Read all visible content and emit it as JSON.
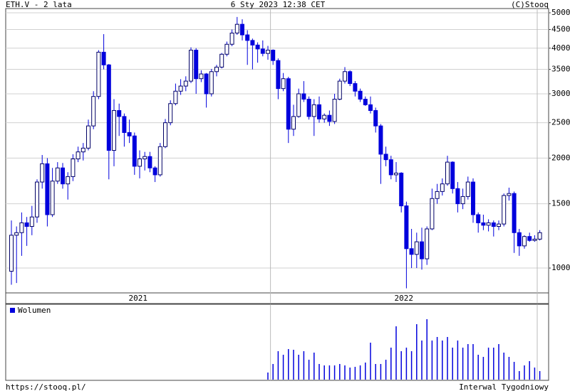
{
  "chart_data": {
    "type": "candlestick",
    "title": "ETH.V - 2 lata",
    "date": "6 Sty 2023 12:38 CET",
    "source": "(C)Stooq",
    "url": "https://stooq.pl/",
    "interval": "Interwal Tygodniowy",
    "x_labels": [
      "2021",
      "2022"
    ],
    "log_scale": true,
    "grid": true,
    "up_color": "#ffffff",
    "down_color": "#0000dd",
    "ylim": [
      855,
      5136
    ],
    "yticks": [
      1000,
      1500,
      2000,
      2500,
      3000,
      3500,
      4000,
      4500,
      5000
    ],
    "open": [
      980,
      1230,
      1250,
      1330,
      1300,
      1380,
      1720,
      1930,
      1400,
      1730,
      1880,
      1700,
      1780,
      1990,
      2080,
      2130,
      2450,
      2950,
      3900,
      3600,
      2100,
      2700,
      2600,
      2350,
      2300,
      1900,
      1990,
      2020,
      1880,
      1800,
      2150,
      2500,
      2820,
      3050,
      3150,
      3250,
      3950,
      3300,
      3400,
      3000,
      3450,
      3550,
      3850,
      4100,
      4400,
      4650,
      4350,
      4200,
      4080,
      3980,
      3870,
      3950,
      3700,
      3100,
      3300,
      2400,
      2600,
      3000,
      2900,
      2600,
      2800,
      2560,
      2620,
      2520,
      2900,
      3250,
      3450,
      3200,
      3050,
      2900,
      2800,
      2700,
      2450,
      2050,
      1980,
      1800,
      1820,
      1480,
      1130,
      1090,
      1180,
      1060,
      1280,
      1550,
      1620,
      1700,
      1950,
      1650,
      1500,
      1570,
      1720,
      1400,
      1330,
      1310,
      1330,
      1300,
      1320,
      1580,
      1600,
      1250,
      1150,
      1220,
      1190,
      1200
    ],
    "high": [
      1350,
      1300,
      1420,
      1380,
      1480,
      1750,
      2040,
      2000,
      1880,
      1950,
      1940,
      1830,
      2050,
      2150,
      2200,
      2550,
      3050,
      3950,
      4370,
      3620,
      2900,
      2820,
      2650,
      2550,
      2350,
      2100,
      2080,
      2080,
      1900,
      2200,
      2560,
      2880,
      3200,
      3290,
      3350,
      4020,
      4000,
      3480,
      3420,
      3510,
      3600,
      3880,
      4170,
      4500,
      4870,
      4800,
      4480,
      4250,
      4150,
      4200,
      4060,
      3970,
      3750,
      3420,
      3340,
      2800,
      3100,
      3250,
      2950,
      2900,
      2950,
      2650,
      2700,
      3000,
      3300,
      3550,
      3480,
      3250,
      3100,
      2950,
      2950,
      2750,
      2480,
      2150,
      2030,
      1950,
      1830,
      1520,
      1280,
      1250,
      1290,
      1300,
      1650,
      1700,
      1760,
      2030,
      1960,
      1720,
      1650,
      1780,
      1760,
      1420,
      1400,
      1360,
      1350,
      1350,
      1600,
      1660,
      1620,
      1280,
      1230,
      1250,
      1230,
      1270
    ],
    "low": [
      900,
      910,
      1080,
      1150,
      1230,
      1330,
      1650,
      1300,
      1380,
      1700,
      1650,
      1540,
      1730,
      1950,
      1970,
      2100,
      2400,
      2900,
      3500,
      1750,
      1900,
      2300,
      2150,
      2200,
      1800,
      1760,
      1850,
      1830,
      1720,
      1780,
      2130,
      2460,
      2790,
      2980,
      3050,
      3210,
      3000,
      3230,
      2750,
      2950,
      3350,
      3520,
      3800,
      4050,
      4350,
      4200,
      3600,
      3500,
      3650,
      3800,
      3720,
      3600,
      2900,
      3050,
      2200,
      2300,
      2580,
      2850,
      2550,
      2300,
      2500,
      2500,
      2450,
      2480,
      2880,
      3200,
      3150,
      2950,
      2850,
      2780,
      2650,
      2350,
      1700,
      1900,
      1750,
      1720,
      1420,
      880,
      1000,
      1000,
      990,
      1020,
      1270,
      1500,
      1580,
      1680,
      1600,
      1420,
      1450,
      1540,
      1330,
      1250,
      1270,
      1260,
      1220,
      1270,
      1300,
      1530,
      1100,
      1080,
      1130,
      1180,
      1180,
      1190
    ],
    "close": [
      1230,
      1250,
      1330,
      1300,
      1380,
      1720,
      1930,
      1400,
      1730,
      1880,
      1700,
      1780,
      1990,
      2080,
      2130,
      2450,
      2950,
      3900,
      3600,
      2100,
      2700,
      2600,
      2350,
      2300,
      1900,
      1990,
      2020,
      1880,
      1800,
      2150,
      2500,
      2820,
      3050,
      3150,
      3250,
      3950,
      3300,
      3400,
      3000,
      3450,
      3550,
      3850,
      4100,
      4400,
      4650,
      4350,
      4200,
      4080,
      3980,
      3870,
      3950,
      3700,
      3100,
      3300,
      2400,
      2600,
      3000,
      2900,
      2600,
      2800,
      2560,
      2620,
      2520,
      2900,
      3250,
      3450,
      3200,
      3050,
      2900,
      2800,
      2700,
      2450,
      2050,
      1980,
      1800,
      1820,
      1480,
      1130,
      1090,
      1180,
      1060,
      1280,
      1550,
      1620,
      1700,
      1950,
      1650,
      1500,
      1570,
      1720,
      1400,
      1330,
      1310,
      1330,
      1300,
      1320,
      1580,
      1600,
      1250,
      1150,
      1220,
      1190,
      1200,
      1250
    ],
    "volume": {
      "name": "Wolumen",
      "color": "#0000dd",
      "values": [
        null,
        null,
        null,
        null,
        null,
        null,
        null,
        null,
        null,
        null,
        null,
        null,
        null,
        null,
        null,
        null,
        null,
        null,
        null,
        null,
        null,
        null,
        null,
        null,
        null,
        null,
        null,
        null,
        null,
        null,
        null,
        null,
        null,
        null,
        null,
        null,
        null,
        null,
        null,
        null,
        null,
        null,
        null,
        null,
        null,
        null,
        null,
        null,
        null,
        null,
        10,
        22,
        40,
        35,
        43,
        42,
        35,
        40,
        28,
        38,
        22,
        20,
        20,
        20,
        22,
        20,
        17,
        18,
        20,
        24,
        52,
        22,
        22,
        28,
        45,
        75,
        40,
        45,
        40,
        78,
        55,
        85,
        55,
        60,
        55,
        60,
        45,
        55,
        45,
        50,
        50,
        35,
        32,
        45,
        45,
        50,
        38,
        32,
        25,
        12,
        20,
        26,
        17,
        12
      ]
    }
  }
}
